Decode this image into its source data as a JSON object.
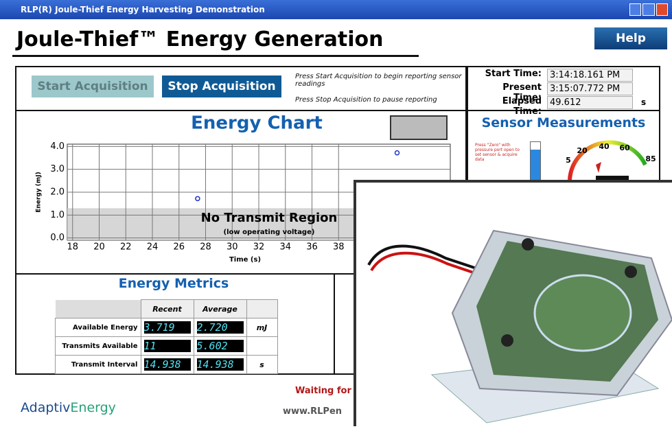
{
  "window_title": "RLP(R) Joule-Thief Energy Harvesting Demonstration",
  "header": {
    "title": "Joule-Thief™ Energy Generation",
    "help": "Help"
  },
  "controls": {
    "start": "Start Acquisition",
    "stop": "Stop Acquisition",
    "hint_start": "Press Start Acquisition to begin reporting sensor readings",
    "hint_stop": "Press Stop Acquisition to pause reporting"
  },
  "times": {
    "rows": [
      {
        "label": "Start Time:",
        "value": "3:14:18.161 PM"
      },
      {
        "label": "Present Time:",
        "value": "3:15:07.772 PM"
      },
      {
        "label": "Elapsed Time:",
        "value": "49.612",
        "unit": "s"
      }
    ]
  },
  "chart_data": {
    "type": "scatter",
    "title": "Energy Chart",
    "x_label": "Time (s)",
    "y_label": "Energy (mJ)",
    "x": [
      27.4,
      42.4
    ],
    "values": [
      1.72,
      3.72
    ],
    "color": "#2233cc",
    "xlim": [
      17.6,
      46.4
    ],
    "ylim": [
      -0.1,
      4.1
    ],
    "xticks": [
      18,
      20,
      22,
      24,
      26,
      28,
      30,
      32,
      34,
      36,
      38
    ],
    "yticks": [
      {
        "value": 0,
        "label": "0.0"
      },
      {
        "value": 1,
        "label": "1.0"
      },
      {
        "value": 2,
        "label": "2.0"
      },
      {
        "value": 3,
        "label": "3.0"
      },
      {
        "value": 4,
        "label": "4.0"
      }
    ],
    "grid": true,
    "region": {
      "label": "No Transmit Region",
      "sublabel": "(low operating voltage)",
      "ymax": 1.3
    }
  },
  "sensor": {
    "title": "Sensor Measurements",
    "note": "Press \"Zero\" with pressure port open to set sensor & acquire data",
    "gauge_labels": [
      "5",
      "20",
      "40",
      "60",
      "85"
    ]
  },
  "metrics": {
    "title": "Energy Metrics",
    "headers": [
      "Recent",
      "Average"
    ],
    "rows": [
      {
        "label": "Available Energy",
        "recent": "3.719",
        "average": "2.720",
        "unit": "mJ"
      },
      {
        "label": "Transmits Available",
        "recent": "11",
        "average": "5.602"
      },
      {
        "label": "Transmit Interval",
        "recent": "14.938",
        "average": "14.938",
        "unit": "s"
      }
    ]
  },
  "footer": {
    "brand_a": "Adaptiv",
    "brand_b": "Energy",
    "status": "Waiting for",
    "url": "www.RLPen"
  }
}
